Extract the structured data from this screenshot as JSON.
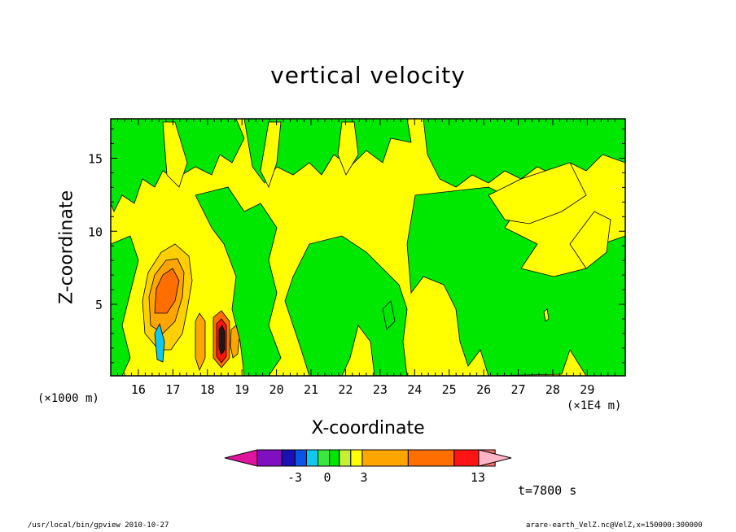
{
  "chart_data": {
    "type": "heatmap",
    "title": "vertical velocity",
    "xlabel": "X-coordinate",
    "ylabel": "Z-coordinate",
    "x_unit_left": "(×1000 m)",
    "x_unit_right": "(×1E4 m)",
    "xlim": [
      15.2,
      30.1
    ],
    "ylim": [
      0.1,
      17.7
    ],
    "x_ticks": [
      "16",
      "17",
      "18",
      "19",
      "20",
      "21",
      "22",
      "23",
      "24",
      "25",
      "26",
      "27",
      "28",
      "29"
    ],
    "y_ticks": [
      "5",
      "10",
      "15"
    ],
    "colorbar": {
      "tick_labels": [
        "-3",
        "0",
        "3",
        "13"
      ],
      "colors": [
        "#e0149c",
        "#7f0fbf",
        "#1a10b4",
        "#0b55e6",
        "#0fc8f0",
        "#38e83a",
        "#00e800",
        "#c8f032",
        "#ffff00",
        "#ffa500",
        "#ff6e00",
        "#ff1414",
        "#ff7070",
        "#ffb4c8"
      ]
    },
    "fields": {
      "background": "#ffff00",
      "weak_negative": "#00e800",
      "positive_1": "#ffd000",
      "positive_2": "#ff6e00",
      "positive_max": "#ff1414",
      "negative_strong": "#0fc8f0"
    },
    "annotation": "t=7800 s"
  },
  "footer": {
    "left": "/usr/local/bin/gpview   2010-10-27",
    "right": "arare-earth_VelZ.nc@VelZ,x=150000:300000"
  }
}
